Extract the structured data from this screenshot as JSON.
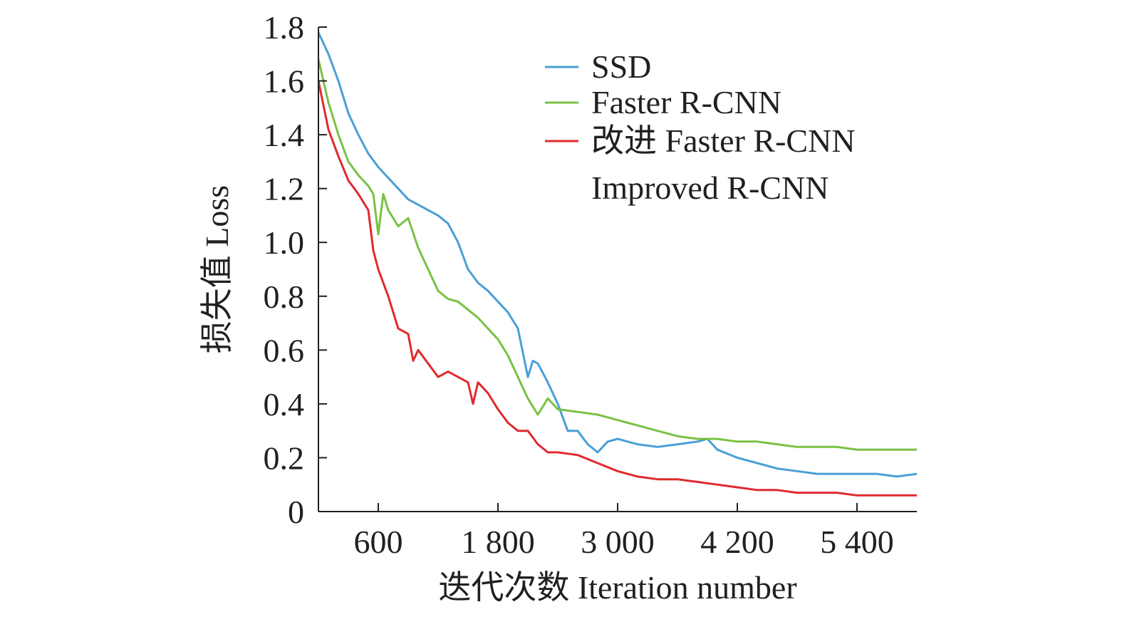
{
  "chart_data": {
    "type": "line",
    "xlabel": "迭代次数 Iteration number",
    "ylabel": "损失值 Loss",
    "xlim": [
      0,
      6000
    ],
    "ylim": [
      0,
      1.8
    ],
    "x_ticks": [
      600,
      1800,
      3000,
      4200,
      5400
    ],
    "x_tick_labels": [
      "600",
      "1 800",
      "3 000",
      "4 200",
      "5 400"
    ],
    "y_ticks": [
      0,
      0.2,
      0.4,
      0.6,
      0.8,
      1.0,
      1.2,
      1.4,
      1.6,
      1.8
    ],
    "y_tick_labels": [
      "0",
      "0.2",
      "0.4",
      "0.6",
      "0.8",
      "1.0",
      "1.2",
      "1.4",
      "1.6",
      "1.8"
    ],
    "grid": false,
    "legend_position": "top-right",
    "legend_extra_line": "Improved R-CNN",
    "series": [
      {
        "name": "SSD",
        "color": "#4a9fd6",
        "x": [
          0,
          100,
          200,
          300,
          400,
          500,
          600,
          700,
          800,
          900,
          1000,
          1100,
          1200,
          1300,
          1400,
          1500,
          1600,
          1700,
          1800,
          1900,
          2000,
          2100,
          2150,
          2200,
          2300,
          2400,
          2500,
          2600,
          2700,
          2800,
          2900,
          3000,
          3200,
          3400,
          3600,
          3800,
          3900,
          4000,
          4200,
          4400,
          4600,
          4800,
          5000,
          5200,
          5400,
          5600,
          5800,
          6000
        ],
        "y": [
          1.78,
          1.7,
          1.6,
          1.48,
          1.4,
          1.33,
          1.28,
          1.24,
          1.2,
          1.16,
          1.14,
          1.12,
          1.1,
          1.07,
          1.0,
          0.9,
          0.85,
          0.82,
          0.78,
          0.74,
          0.68,
          0.5,
          0.56,
          0.55,
          0.48,
          0.4,
          0.3,
          0.3,
          0.25,
          0.22,
          0.26,
          0.27,
          0.25,
          0.24,
          0.25,
          0.26,
          0.27,
          0.23,
          0.2,
          0.18,
          0.16,
          0.15,
          0.14,
          0.14,
          0.14,
          0.14,
          0.13,
          0.14
        ]
      },
      {
        "name": "Faster R-CNN",
        "color": "#7ac143",
        "x": [
          0,
          100,
          200,
          300,
          400,
          500,
          550,
          600,
          650,
          700,
          800,
          900,
          1000,
          1100,
          1200,
          1300,
          1400,
          1500,
          1600,
          1700,
          1800,
          1900,
          2000,
          2100,
          2200,
          2300,
          2400,
          2600,
          2800,
          3000,
          3200,
          3400,
          3600,
          3800,
          4000,
          4200,
          4400,
          4600,
          4800,
          5000,
          5200,
          5400,
          5600,
          5800,
          6000
        ],
        "y": [
          1.68,
          1.52,
          1.4,
          1.3,
          1.25,
          1.21,
          1.18,
          1.03,
          1.18,
          1.12,
          1.06,
          1.09,
          0.98,
          0.9,
          0.82,
          0.79,
          0.78,
          0.75,
          0.72,
          0.68,
          0.64,
          0.58,
          0.5,
          0.42,
          0.36,
          0.42,
          0.38,
          0.37,
          0.36,
          0.34,
          0.32,
          0.3,
          0.28,
          0.27,
          0.27,
          0.26,
          0.26,
          0.25,
          0.24,
          0.24,
          0.24,
          0.23,
          0.23,
          0.23,
          0.23
        ]
      },
      {
        "name": "改进 Faster R-CNN",
        "color": "#e02a2f",
        "x": [
          0,
          100,
          200,
          300,
          400,
          500,
          550,
          600,
          700,
          800,
          900,
          950,
          1000,
          1100,
          1200,
          1300,
          1400,
          1500,
          1550,
          1600,
          1700,
          1800,
          1900,
          2000,
          2100,
          2200,
          2300,
          2400,
          2600,
          2800,
          3000,
          3200,
          3400,
          3600,
          3800,
          4000,
          4200,
          4400,
          4600,
          4800,
          5000,
          5200,
          5400,
          5600,
          5800,
          6000
        ],
        "y": [
          1.6,
          1.42,
          1.32,
          1.23,
          1.18,
          1.12,
          0.97,
          0.9,
          0.8,
          0.68,
          0.66,
          0.56,
          0.6,
          0.55,
          0.5,
          0.52,
          0.5,
          0.48,
          0.4,
          0.48,
          0.44,
          0.38,
          0.33,
          0.3,
          0.3,
          0.25,
          0.22,
          0.22,
          0.21,
          0.18,
          0.15,
          0.13,
          0.12,
          0.12,
          0.11,
          0.1,
          0.09,
          0.08,
          0.08,
          0.07,
          0.07,
          0.07,
          0.06,
          0.06,
          0.06,
          0.06
        ]
      }
    ]
  }
}
